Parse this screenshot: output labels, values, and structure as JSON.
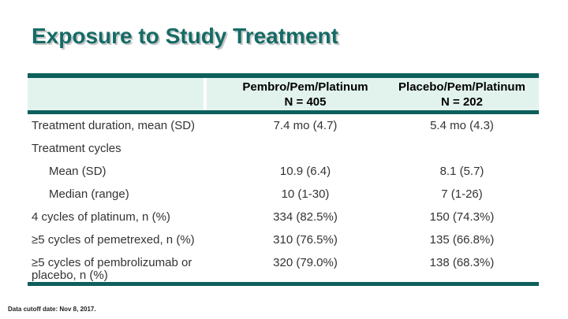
{
  "title": "Exposure to Study Treatment",
  "footnote": "Data cutoff date: Nov 8, 2017.",
  "colors": {
    "rule_teal": "#0d5f5b",
    "header_background": "#e2f3ee",
    "title_teal": "#156b66",
    "body_text": "#333333"
  },
  "table": {
    "columns": [
      {
        "line1": "Pembro/Pem/Platinum",
        "line2": "N = 405"
      },
      {
        "line1": "Placebo/Pem/Platinum",
        "line2": "N = 202"
      }
    ],
    "rows": [
      {
        "label": "Treatment duration, mean (SD)",
        "indent": false,
        "tall": false,
        "pembro": "7.4 mo (4.7)",
        "placebo": "5.4 mo (4.3)"
      },
      {
        "label": "Treatment cycles",
        "indent": false,
        "tall": false,
        "pembro": "",
        "placebo": ""
      },
      {
        "label": "Mean (SD)",
        "indent": true,
        "tall": false,
        "pembro": "10.9 (6.4)",
        "placebo": "8.1 (5.7)"
      },
      {
        "label": "Median (range)",
        "indent": true,
        "tall": false,
        "pembro": "10 (1-30)",
        "placebo": "7 (1-26)"
      },
      {
        "label": "4 cycles of platinum, n (%)",
        "indent": false,
        "tall": false,
        "pembro": "334 (82.5%)",
        "placebo": "150 (74.3%)"
      },
      {
        "label": "≥5 cycles of pemetrexed, n (%)",
        "indent": false,
        "tall": false,
        "pembro": "310 (76.5%)",
        "placebo": "135 (66.8%)"
      },
      {
        "label": "≥5 cycles of pembrolizumab or placebo, n (%)",
        "indent": false,
        "tall": true,
        "pembro": "320 (79.0%)",
        "placebo": "138 (68.3%)"
      }
    ]
  }
}
